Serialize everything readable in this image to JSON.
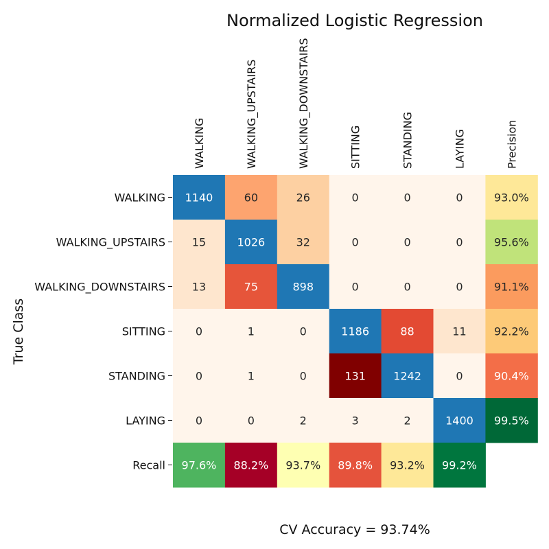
{
  "chart_data": {
    "type": "heatmap",
    "title": "Normalized Logistic Regression",
    "ylabel": "True Class",
    "footer": "CV Accuracy = 93.74%",
    "columns": [
      "WALKING",
      "WALKING_UPSTAIRS",
      "WALKING_DOWNSTAIRS",
      "SITTING",
      "STANDING",
      "LAYING",
      "Precision"
    ],
    "rows": [
      "WALKING",
      "WALKING_UPSTAIRS",
      "WALKING_DOWNSTAIRS",
      "SITTING",
      "STANDING",
      "LAYING",
      "Recall"
    ],
    "matrix": [
      [
        1140,
        60,
        26,
        0,
        0,
        0
      ],
      [
        15,
        1026,
        32,
        0,
        0,
        0
      ],
      [
        13,
        75,
        898,
        0,
        0,
        0
      ],
      [
        0,
        1,
        0,
        1186,
        88,
        11
      ],
      [
        0,
        1,
        0,
        131,
        1242,
        0
      ],
      [
        0,
        0,
        2,
        3,
        2,
        1400
      ]
    ],
    "precision": [
      "93.0%",
      "95.6%",
      "91.1%",
      "92.2%",
      "90.4%",
      "99.5%"
    ],
    "recall": [
      "97.6%",
      "88.2%",
      "93.7%",
      "89.8%",
      "93.2%",
      "99.2%"
    ],
    "colors": {
      "diagonal": "#1f77b4",
      "off_diagonal": [
        "#fff5eb",
        "#fee6ce",
        "#fdd0a2",
        "#fda46f",
        "#fd9d5f",
        "#e6553a",
        "#e34a33",
        "#800000"
      ],
      "precision": [
        "#fee898",
        "#c0e37a",
        "#fb9b5e",
        "#fdca78",
        "#f36e48",
        "#006837"
      ],
      "recall": [
        "#4eb45f",
        "#a50026",
        "#feffb2",
        "#e5533c",
        "#fee898",
        "#00763e"
      ]
    }
  }
}
